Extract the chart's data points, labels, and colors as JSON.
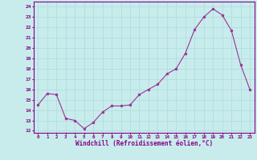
{
  "x": [
    0,
    1,
    2,
    3,
    4,
    5,
    6,
    7,
    8,
    9,
    10,
    11,
    12,
    13,
    14,
    15,
    16,
    17,
    18,
    19,
    20,
    21,
    22,
    23
  ],
  "y": [
    14.5,
    15.6,
    15.5,
    13.2,
    13.0,
    12.2,
    12.8,
    13.8,
    14.4,
    14.4,
    14.5,
    15.5,
    16.0,
    16.5,
    17.5,
    18.0,
    19.5,
    21.8,
    23.0,
    23.8,
    23.2,
    21.7,
    18.4,
    16.0
  ],
  "line_color": "#993399",
  "marker_color": "#993399",
  "bg_color": "#c8ecec",
  "grid_color": "#b0dede",
  "xlabel": "Windchill (Refroidissement éolien,°C)",
  "ylabel_ticks": [
    12,
    13,
    14,
    15,
    16,
    17,
    18,
    19,
    20,
    21,
    22,
    23,
    24
  ],
  "xlim": [
    -0.5,
    23.5
  ],
  "ylim": [
    11.8,
    24.5
  ],
  "title_color": "#880088"
}
